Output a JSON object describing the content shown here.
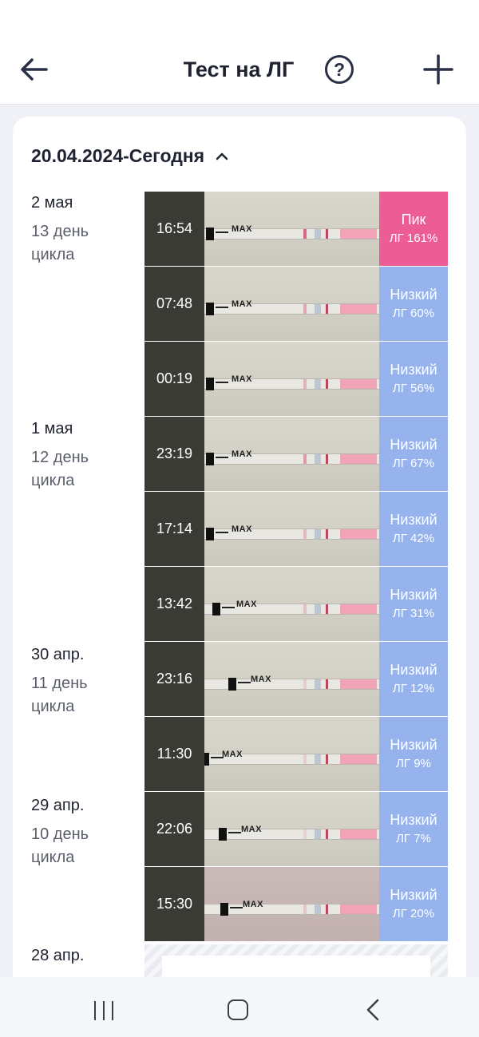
{
  "header": {
    "title": "Тест на ЛГ",
    "help_icon": "?"
  },
  "range": {
    "label": "20.04.2024-Сегодня"
  },
  "days": [
    {
      "date": "2 мая",
      "cycle": "13 день цикла"
    },
    {
      "date": "1 мая",
      "cycle": "12 день цикла"
    },
    {
      "date": "30 апр.",
      "cycle": "11 день цикла"
    },
    {
      "date": "29 апр.",
      "cycle": "10 день цикла"
    },
    {
      "date": "28 апр.",
      "cycle": ""
    }
  ],
  "tests": [
    {
      "time": "16:54",
      "level": "Пик",
      "value": "ЛГ 161%",
      "strip_label": "MAX"
    },
    {
      "time": "07:48",
      "level": "Низкий",
      "value": "ЛГ 60%",
      "strip_label": "MAX"
    },
    {
      "time": "00:19",
      "level": "Низкий",
      "value": "ЛГ 56%",
      "strip_label": "MAX"
    },
    {
      "time": "23:19",
      "level": "Низкий",
      "value": "ЛГ 67%",
      "strip_label": "MAX"
    },
    {
      "time": "17:14",
      "level": "Низкий",
      "value": "ЛГ 42%",
      "strip_label": "MAX"
    },
    {
      "time": "13:42",
      "level": "Низкий",
      "value": "ЛГ 31%",
      "strip_label": "MAX"
    },
    {
      "time": "23:16",
      "level": "Низкий",
      "value": "ЛГ 12%",
      "strip_label": "MAX"
    },
    {
      "time": "11:30",
      "level": "Низкий",
      "value": "ЛГ 9%",
      "strip_label": "MAX"
    },
    {
      "time": "22:06",
      "level": "Низкий",
      "value": "ЛГ 7%",
      "strip_label": "MAX"
    },
    {
      "time": "15:30",
      "level": "Низкий",
      "value": "ЛГ 20%",
      "strip_label": "MAX"
    }
  ],
  "colors": {
    "peak": "#ec5c95",
    "low": "#96b3ee",
    "time_bg": "#3b3b35"
  }
}
